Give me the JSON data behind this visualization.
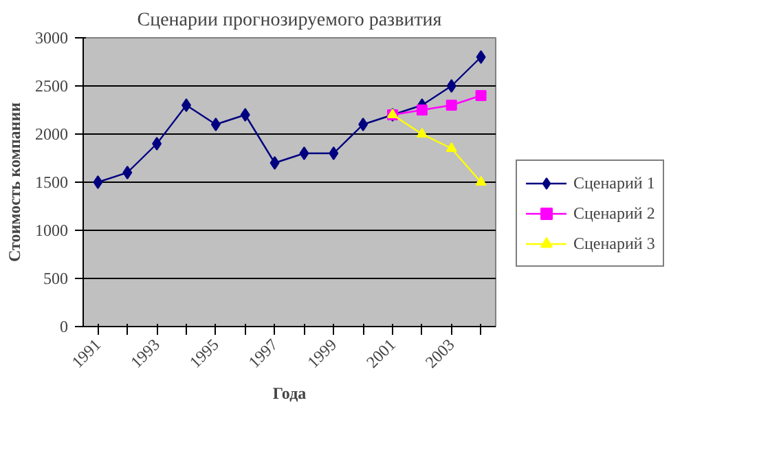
{
  "chart_data": {
    "type": "line",
    "title": "Сценарии прогнозируемого развития",
    "xlabel": "Года",
    "ylabel": "Стоимость компании",
    "categories": [
      "1991",
      null,
      "1993",
      null,
      "1995",
      null,
      "1997",
      null,
      "1999",
      null,
      "2001",
      null,
      "2003",
      null
    ],
    "ylim": [
      0,
      3000
    ],
    "yticks": [
      0,
      500,
      1000,
      1500,
      2000,
      2500,
      3000
    ],
    "grid": "y",
    "legend": "right",
    "series": [
      {
        "name": "Сценарий 1",
        "color": "#000080",
        "marker": "diamond",
        "values": [
          1500,
          1600,
          1900,
          2300,
          2100,
          2200,
          1700,
          1800,
          1800,
          2100,
          2200,
          2300,
          2500,
          2800
        ]
      },
      {
        "name": "Сценарий 2",
        "color": "#ff00ff",
        "marker": "square",
        "values": [
          null,
          null,
          null,
          null,
          null,
          null,
          null,
          null,
          null,
          null,
          2200,
          2250,
          2300,
          2400
        ]
      },
      {
        "name": "Сценарий 3",
        "color": "#ffff00",
        "marker": "triangle",
        "values": [
          null,
          null,
          null,
          null,
          null,
          null,
          null,
          null,
          null,
          null,
          2200,
          2000,
          1850,
          1500
        ]
      }
    ]
  }
}
